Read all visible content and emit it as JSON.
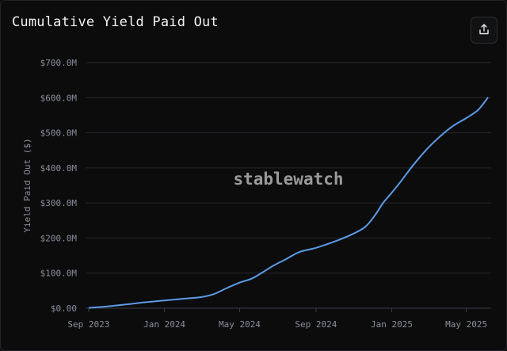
{
  "header": {
    "title": "Cumulative Yield Paid Out",
    "share_icon": "share-icon"
  },
  "watermark": "stablewatch",
  "colors": {
    "line": "#5b9be6",
    "grid": "#23262d",
    "background": "#0c0c0d"
  },
  "chart_data": {
    "type": "line",
    "title": "Cumulative Yield Paid Out",
    "xlabel": "",
    "ylabel": "Yield Paid Out ($)",
    "ylim": [
      0,
      700
    ],
    "y_ticks": [
      0,
      100,
      200,
      300,
      400,
      500,
      600,
      700
    ],
    "y_tick_labels": [
      "$0.00",
      "$100.0M",
      "$200.0M",
      "$300.0M",
      "$400.0M",
      "$500.0M",
      "$600.0M",
      "$700.0M"
    ],
    "x_ticks": [
      "2023-09-01",
      "2024-01-01",
      "2024-05-01",
      "2024-09-01",
      "2025-01-01",
      "2025-05-01"
    ],
    "x_tick_labels": [
      "Sep 2023",
      "Jan 2024",
      "May 2024",
      "Sep 2024",
      "Jan 2025",
      "May 2025"
    ],
    "xlim": [
      "2023-08-27",
      "2025-06-10"
    ],
    "grid": true,
    "series": [
      {
        "x": [
          "2023-09-01",
          "2023-10-01",
          "2023-11-01",
          "2023-12-01",
          "2024-01-01",
          "2024-02-01",
          "2024-03-01",
          "2024-03-20",
          "2024-04-10",
          "2024-05-01",
          "2024-05-20",
          "2024-06-05",
          "2024-06-25",
          "2024-07-15",
          "2024-08-05",
          "2024-09-01",
          "2024-10-01",
          "2024-11-01",
          "2024-11-20",
          "2024-12-05",
          "2024-12-18",
          "2024-12-30",
          "2025-01-15",
          "2025-02-01",
          "2025-02-15",
          "2025-03-01",
          "2025-03-20",
          "2025-04-10",
          "2025-05-01",
          "2025-05-20",
          "2025-06-05"
        ],
        "y": [
          1,
          5,
          11,
          17,
          22,
          27,
          32,
          40,
          57,
          73,
          84,
          100,
          122,
          140,
          160,
          172,
          190,
          213,
          233,
          265,
          300,
          325,
          360,
          400,
          430,
          458,
          490,
          520,
          542,
          565,
          601
        ]
      }
    ]
  }
}
